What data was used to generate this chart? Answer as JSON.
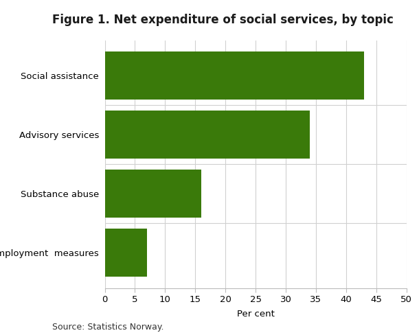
{
  "title": "Figure 1. Net expenditure of social services, by topic",
  "categories": [
    "Employment  measures",
    "Substance abuse",
    "Advisory services",
    "Social assistance"
  ],
  "values": [
    7,
    16,
    34,
    43
  ],
  "bar_color": "#3a7a0a",
  "xlabel": "Per cent",
  "xlim": [
    0,
    50
  ],
  "xticks": [
    0,
    5,
    10,
    15,
    20,
    25,
    30,
    35,
    40,
    45,
    50
  ],
  "source_text": "Source: Statistics Norway.",
  "background_color": "#ffffff",
  "grid_color": "#d0d0d0",
  "title_fontsize": 12,
  "label_fontsize": 9.5,
  "tick_fontsize": 9.5,
  "source_fontsize": 9,
  "bar_height": 0.82
}
